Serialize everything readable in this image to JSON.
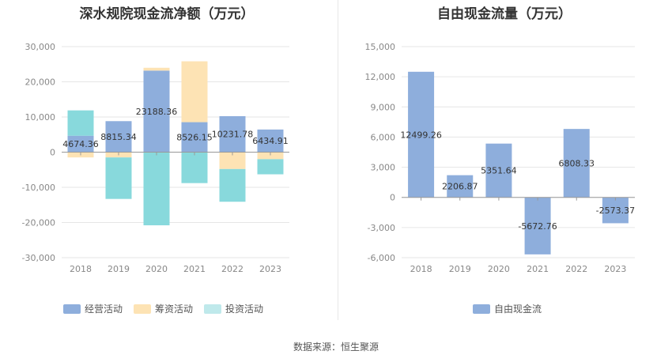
{
  "chart_data": [
    {
      "type": "bar",
      "stacked": true,
      "title": "深水规院现金流净额（万元）",
      "categories": [
        "2018",
        "2019",
        "2020",
        "2021",
        "2022",
        "2023"
      ],
      "ylim": [
        -30000,
        30000
      ],
      "yticks": [
        "30,000",
        "20,000",
        "10,000",
        "0",
        "-10,000",
        "-20,000",
        "-30,000"
      ],
      "ytick_values": [
        30000,
        20000,
        10000,
        0,
        -10000,
        -20000,
        -30000
      ],
      "grid": true,
      "legend_position": "bottom",
      "series": [
        {
          "name": "经营活动",
          "color": "#8eaedc",
          "values": [
            4674.36,
            8815.34,
            23188.36,
            8526.15,
            10231.78,
            6434.91
          ]
        },
        {
          "name": "筹资活动",
          "color": "#fde3b4",
          "values": [
            -1500,
            -1500,
            800,
            17300,
            -4800,
            -2000
          ]
        },
        {
          "name": "投资活动",
          "color": "#88d9dc",
          "values": [
            7200,
            -11800,
            -20800,
            -8800,
            -9300,
            -4300
          ]
        }
      ],
      "data_labels": [
        "4674.36",
        "8815.34",
        "23188.36",
        "8526.15",
        "10231.78",
        "6434.91"
      ]
    },
    {
      "type": "bar",
      "title": "自由现金流量（万元）",
      "categories": [
        "2018",
        "2019",
        "2020",
        "2021",
        "2022",
        "2023"
      ],
      "ylim": [
        -6000,
        15000
      ],
      "yticks": [
        "15,000",
        "12,000",
        "9,000",
        "6,000",
        "3,000",
        "0",
        "-3,000",
        "-6,000"
      ],
      "ytick_values": [
        15000,
        12000,
        9000,
        6000,
        3000,
        0,
        -3000,
        -6000
      ],
      "grid": true,
      "legend_position": "bottom",
      "series": [
        {
          "name": "自由现金流",
          "color": "#8eaedc",
          "values": [
            12499.26,
            2206.87,
            5351.64,
            -5672.76,
            6808.33,
            -2573.37
          ]
        }
      ],
      "data_labels": [
        "12499.26",
        "2206.87",
        "5351.64",
        "-5672.76",
        "6808.33",
        "-2573.37"
      ]
    }
  ],
  "footer": {
    "source": "数据来源：恒生聚源"
  }
}
